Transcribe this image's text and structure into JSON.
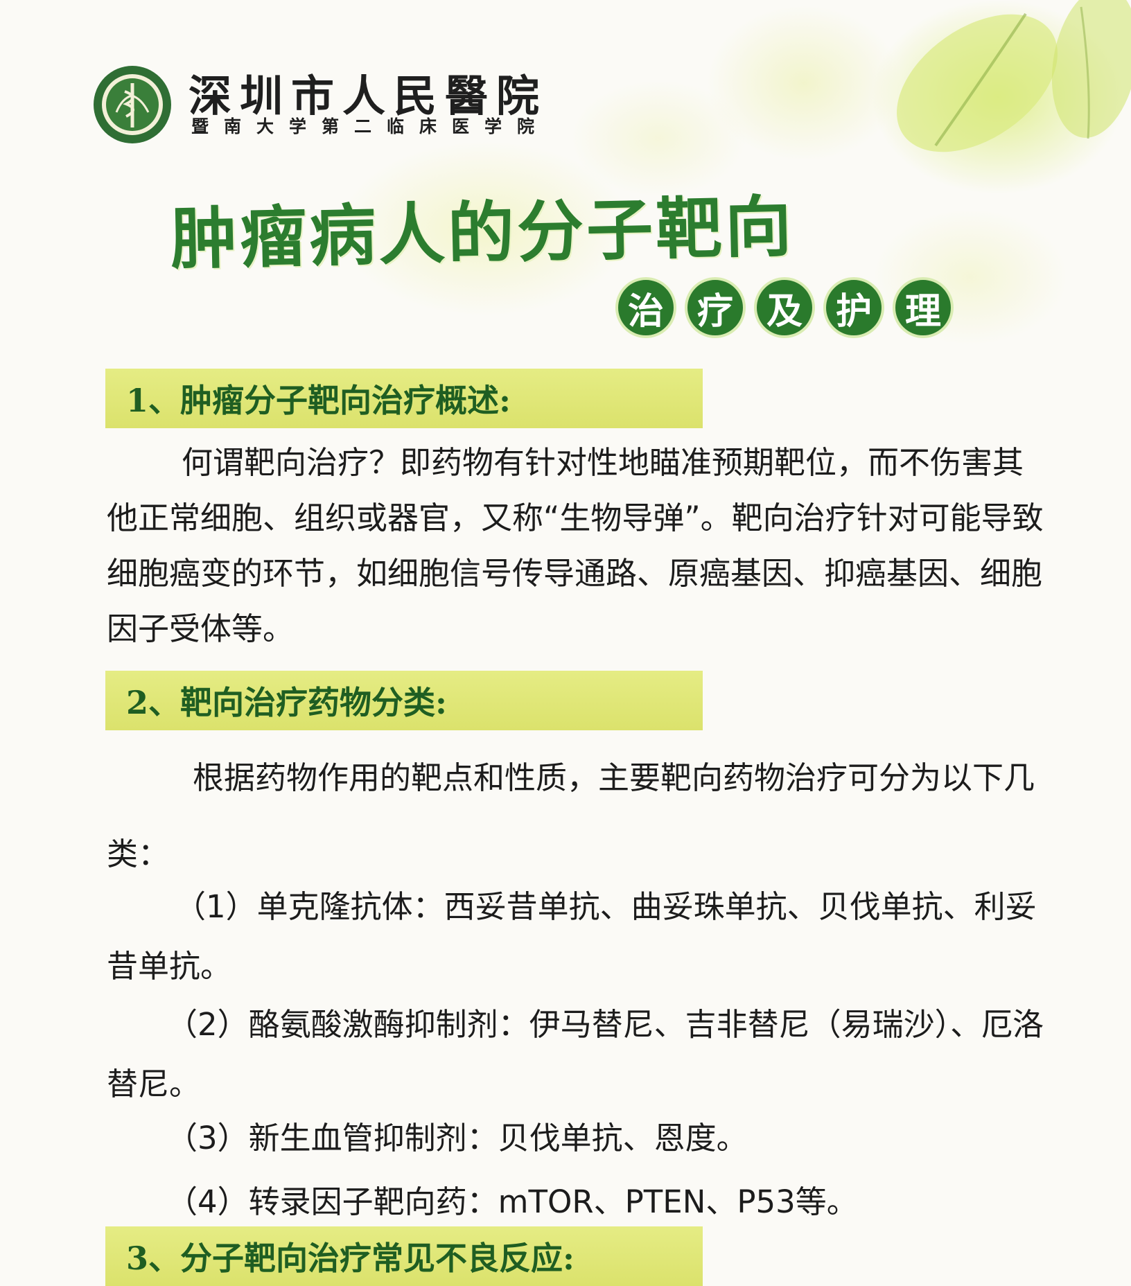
{
  "header": {
    "hospital_name": "深圳市人民醫院",
    "hospital_subtitle": "暨南大学第二临床医学院"
  },
  "title": {
    "main": "肿瘤病人的分子靶向",
    "circles": [
      "治",
      "疗",
      "及",
      "护",
      "理"
    ]
  },
  "sections": [
    {
      "heading": "1、肿瘤分子靶向治疗概述:",
      "body": "何谓靶向治疗？即药物有针对性地瞄准预期靶位，而不伤害其他正常细胞、组织或器官，又称“生物导弹”。靶向治疗针对可能导致细胞癌变的环节，如细胞信号传导通路、原癌基因、抑癌基因、细胞因子受体等。"
    },
    {
      "heading": "2、靶向治疗药物分类:",
      "intro": "根据药物作用的靶点和性质，主要靶向药物治疗可分为以下几类：",
      "items": [
        "（1）单克隆抗体：西妥昔单抗、曲妥珠单抗、贝伐单抗、利妥昔单抗。",
        "（2）酪氨酸激酶抑制剂：伊马替尼、吉非替尼（易瑞沙）、厄洛替尼。",
        "（3）新生血管抑制剂：贝伐单抗、恩度。",
        "（4）转录因子靶向药：mTOR、PTEN、P53等。"
      ]
    },
    {
      "heading": "3、分子靶向治疗常见不良反应:"
    }
  ],
  "colors": {
    "title_green": "#2c7d2f",
    "circle_green": "#2a7a2c",
    "section_bar": "#e3ea7e",
    "section_text": "#1f5e22"
  },
  "icons": {
    "logo": "hospital-emblem-icon"
  }
}
